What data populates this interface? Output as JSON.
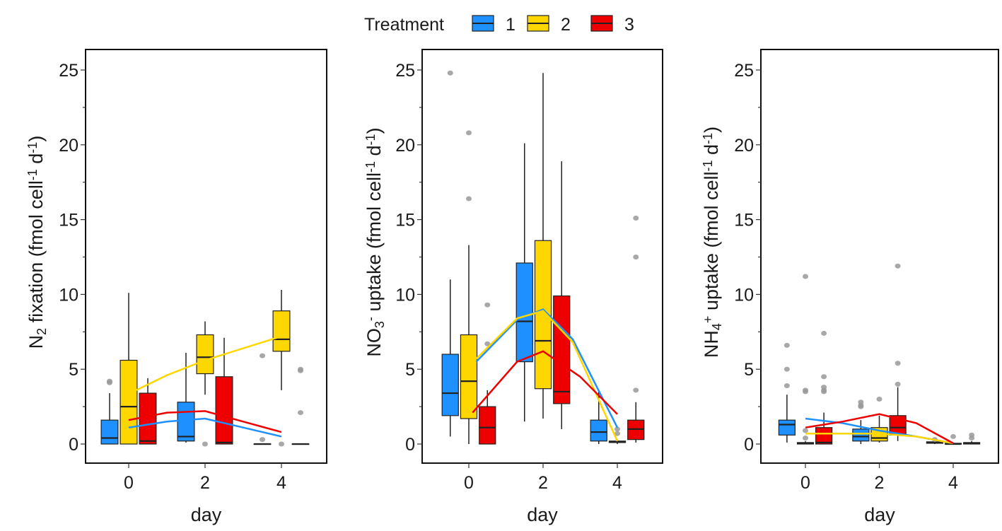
{
  "legend": {
    "title": "Treatment",
    "items": [
      {
        "label": "1",
        "color": "#1e90ff"
      },
      {
        "label": "2",
        "color": "#ffd700"
      },
      {
        "label": "3",
        "color": "#ee0000"
      }
    ]
  },
  "chart_data": [
    {
      "type": "box",
      "xlabel": "day",
      "ylabel_parts": [
        {
          "t": "N"
        },
        {
          "t": "2",
          "s": "sub"
        },
        {
          "t": " fixation (fmol cell"
        },
        {
          "t": "-1",
          "s": "sup"
        },
        {
          "t": " d"
        },
        {
          "t": "-1",
          "s": "sup"
        },
        {
          "t": ")"
        }
      ],
      "ylim": [
        -1.2,
        26.5
      ],
      "yticks": [
        0,
        5,
        10,
        15,
        20,
        25
      ],
      "xticks": [
        0,
        2,
        4
      ],
      "boxes": [
        {
          "day": 0,
          "treatment": 1,
          "stats": [
            0,
            0,
            0.4,
            1.6,
            3.4
          ],
          "outliers": [
            4.2,
            4.1
          ]
        },
        {
          "day": 0,
          "treatment": 2,
          "stats": [
            0,
            0,
            2.5,
            5.6,
            10.1
          ],
          "outliers": []
        },
        {
          "day": 0,
          "treatment": 3,
          "stats": [
            0,
            0,
            0.2,
            3.4,
            4.4
          ],
          "outliers": []
        },
        {
          "day": 2,
          "treatment": 1,
          "stats": [
            0.1,
            0.2,
            0.5,
            2.8,
            6.1
          ],
          "outliers": []
        },
        {
          "day": 2,
          "treatment": 2,
          "stats": [
            3.3,
            4.7,
            5.8,
            7.3,
            8.2
          ],
          "outliers": [
            0
          ]
        },
        {
          "day": 2,
          "treatment": 3,
          "stats": [
            0,
            0,
            0.1,
            4.5,
            7.1
          ],
          "outliers": []
        },
        {
          "day": 4,
          "treatment": 1,
          "stats": [
            0,
            0,
            0,
            0,
            0
          ],
          "outliers": [
            5.9,
            0.3
          ]
        },
        {
          "day": 4,
          "treatment": 2,
          "stats": [
            3.6,
            6.2,
            7.0,
            8.9,
            10.3
          ],
          "outliers": [
            0
          ]
        },
        {
          "day": 4,
          "treatment": 3,
          "stats": [
            0,
            0,
            0,
            0,
            0
          ],
          "outliers": [
            5.0,
            4.9,
            2.1
          ]
        }
      ],
      "trends": [
        {
          "treatment": 1,
          "points": [
            [
              0,
              1.1
            ],
            [
              1,
              1.5
            ],
            [
              2,
              1.7
            ],
            [
              3,
              1.1
            ],
            [
              4,
              0.5
            ]
          ]
        },
        {
          "treatment": 2,
          "points": [
            [
              0.2,
              3.6
            ],
            [
              1,
              4.6
            ],
            [
              2,
              5.6
            ],
            [
              3,
              6.4
            ],
            [
              4,
              7.2
            ]
          ]
        },
        {
          "treatment": 3,
          "points": [
            [
              0,
              1.6
            ],
            [
              1,
              2.1
            ],
            [
              2,
              2.2
            ],
            [
              3,
              1.5
            ],
            [
              4,
              0.8
            ]
          ]
        }
      ]
    },
    {
      "type": "box",
      "xlabel": "day",
      "ylabel_parts": [
        {
          "t": "NO"
        },
        {
          "t": "3",
          "s": "sub"
        },
        {
          "t": "-",
          "s": "sup"
        },
        {
          "t": " uptake (fmol cell"
        },
        {
          "t": "-1",
          "s": "sup"
        },
        {
          "t": " d"
        },
        {
          "t": "-1",
          "s": "sup"
        },
        {
          "t": ")"
        }
      ],
      "ylim": [
        -1.2,
        26.5
      ],
      "yticks": [
        0,
        5,
        10,
        15,
        20,
        25
      ],
      "xticks": [
        0,
        2,
        4
      ],
      "boxes": [
        {
          "day": 0,
          "treatment": 1,
          "stats": [
            0.5,
            1.9,
            3.4,
            6.0,
            11.0
          ],
          "outliers": [
            24.8
          ]
        },
        {
          "day": 0,
          "treatment": 2,
          "stats": [
            0,
            1.7,
            4.2,
            7.3,
            13.3
          ],
          "outliers": [
            20.8,
            16.4
          ]
        },
        {
          "day": 0,
          "treatment": 3,
          "stats": [
            0,
            0,
            1.1,
            2.5,
            3.6
          ],
          "outliers": [
            9.3,
            6.7
          ]
        },
        {
          "day": 2,
          "treatment": 1,
          "stats": [
            1.5,
            5.5,
            8.2,
            12.1,
            20.1
          ],
          "outliers": []
        },
        {
          "day": 2,
          "treatment": 2,
          "stats": [
            1.7,
            3.7,
            6.9,
            13.6,
            24.8
          ],
          "outliers": []
        },
        {
          "day": 2,
          "treatment": 3,
          "stats": [
            1.0,
            2.7,
            3.5,
            9.9,
            18.9
          ],
          "outliers": []
        },
        {
          "day": 4,
          "treatment": 1,
          "stats": [
            0,
            0.2,
            0.8,
            1.6,
            3.5
          ],
          "outliers": []
        },
        {
          "day": 4,
          "treatment": 2,
          "stats": [
            0,
            0.1,
            0.15,
            0.2,
            0.3
          ],
          "outliers": [
            1.0,
            0.7
          ]
        },
        {
          "day": 4,
          "treatment": 3,
          "stats": [
            0.1,
            0.3,
            1.0,
            1.6,
            2.8
          ],
          "outliers": [
            15.1,
            12.5,
            3.6
          ]
        }
      ],
      "trends": [
        {
          "treatment": 1,
          "points": [
            [
              0.2,
              5.5
            ],
            [
              1.3,
              8.3
            ],
            [
              2,
              9.0
            ],
            [
              2.8,
              7.0
            ],
            [
              4,
              1.1
            ]
          ]
        },
        {
          "treatment": 2,
          "points": [
            [
              0.2,
              5.7
            ],
            [
              1.3,
              8.4
            ],
            [
              2,
              8.9
            ],
            [
              2.8,
              6.8
            ],
            [
              4,
              0.2
            ]
          ]
        },
        {
          "treatment": 3,
          "points": [
            [
              0.1,
              2.1
            ],
            [
              1.3,
              5.5
            ],
            [
              2,
              6.2
            ],
            [
              3,
              4.5
            ],
            [
              4,
              2.0
            ]
          ]
        }
      ]
    },
    {
      "type": "box",
      "xlabel": "day",
      "ylabel_parts": [
        {
          "t": "NH"
        },
        {
          "t": "4",
          "s": "sub"
        },
        {
          "t": "+",
          "s": "sup"
        },
        {
          "t": " uptake (fmol cell"
        },
        {
          "t": "-1",
          "s": "sup"
        },
        {
          "t": " d"
        },
        {
          "t": "-1",
          "s": "sup"
        },
        {
          "t": ")"
        }
      ],
      "ylim": [
        -1.2,
        26.5
      ],
      "yticks": [
        0,
        5,
        10,
        15,
        20,
        25
      ],
      "xticks": [
        0,
        2,
        4
      ],
      "boxes": [
        {
          "day": 0,
          "treatment": 1,
          "stats": [
            0.1,
            0.6,
            1.3,
            1.6,
            3.3
          ],
          "outliers": [
            6.6,
            5.0,
            3.9
          ]
        },
        {
          "day": 0,
          "treatment": 2,
          "stats": [
            0,
            0,
            0.05,
            0.1,
            0.2
          ],
          "outliers": [
            11.2,
            3.6,
            3.5,
            0.9,
            0.4
          ]
        },
        {
          "day": 0,
          "treatment": 3,
          "stats": [
            0,
            0,
            0.1,
            1.1,
            2.1
          ],
          "outliers": [
            7.4,
            4.5,
            3.8,
            3.6,
            3.5
          ]
        },
        {
          "day": 2,
          "treatment": 1,
          "stats": [
            0,
            0.2,
            0.5,
            1.0,
            1.6
          ],
          "outliers": [
            2.8,
            2.6,
            2.5
          ]
        },
        {
          "day": 2,
          "treatment": 2,
          "stats": [
            0.1,
            0.2,
            0.4,
            1.1,
            1.9
          ],
          "outliers": [
            3.0
          ]
        },
        {
          "day": 2,
          "treatment": 3,
          "stats": [
            0.2,
            0.6,
            1.1,
            1.9,
            3.8
          ],
          "outliers": [
            11.9,
            5.4,
            4.0
          ]
        },
        {
          "day": 4,
          "treatment": 1,
          "stats": [
            0,
            0.05,
            0.1,
            0.15,
            0.3
          ],
          "outliers": [
            0.3
          ]
        },
        {
          "day": 4,
          "treatment": 2,
          "stats": [
            0,
            0,
            0,
            0.05,
            0.1
          ],
          "outliers": [
            0.5
          ]
        },
        {
          "day": 4,
          "treatment": 3,
          "stats": [
            0,
            0,
            0.05,
            0.1,
            0.2
          ],
          "outliers": [
            0.6,
            0.4
          ]
        }
      ],
      "trends": [
        {
          "treatment": 1,
          "points": [
            [
              0,
              1.7
            ],
            [
              1,
              1.4
            ],
            [
              2,
              0.9
            ],
            [
              3,
              0.5
            ],
            [
              4,
              0.05
            ]
          ]
        },
        {
          "treatment": 2,
          "points": [
            [
              0,
              0.7
            ],
            [
              1,
              0.7
            ],
            [
              2,
              0.7
            ],
            [
              3,
              0.5
            ],
            [
              4,
              0.05
            ]
          ]
        },
        {
          "treatment": 3,
          "points": [
            [
              0,
              1.1
            ],
            [
              1,
              1.5
            ],
            [
              2,
              2.0
            ],
            [
              3,
              1.4
            ],
            [
              4,
              0.05
            ]
          ]
        }
      ]
    }
  ]
}
